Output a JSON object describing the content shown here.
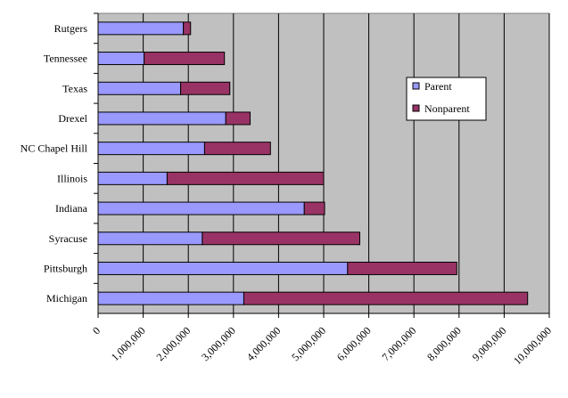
{
  "chart_data": {
    "type": "bar",
    "orientation": "horizontal",
    "stacked": true,
    "title": "",
    "xlabel": "",
    "ylabel": "",
    "categories": [
      "Rutgers",
      "Tennessee",
      "Texas",
      "Drexel",
      "NC Chapel Hill",
      "Illinois",
      "Indiana",
      "Syracuse",
      "Pittsburgh",
      "Michigan"
    ],
    "series": [
      {
        "name": "Parent",
        "color": "#9999FF",
        "values": [
          1890000,
          1020000,
          1830000,
          2830000,
          2360000,
          1530000,
          4570000,
          2310000,
          5530000,
          3230000
        ]
      },
      {
        "name": "Nonparent",
        "color": "#993366",
        "values": [
          160000,
          1780000,
          1090000,
          540000,
          1460000,
          3470000,
          450000,
          3490000,
          2420000,
          6290000
        ]
      }
    ],
    "xlim": [
      0,
      10000000
    ],
    "x_ticks": [
      "0",
      "1,000,000",
      "2,000,000",
      "3,000,000",
      "4,000,000",
      "5,000,000",
      "6,000,000",
      "7,000,000",
      "8,000,000",
      "9,000,000",
      "10,000,000"
    ],
    "grid": true,
    "plot_background": "#C0C0C0",
    "legend_position": "right"
  }
}
